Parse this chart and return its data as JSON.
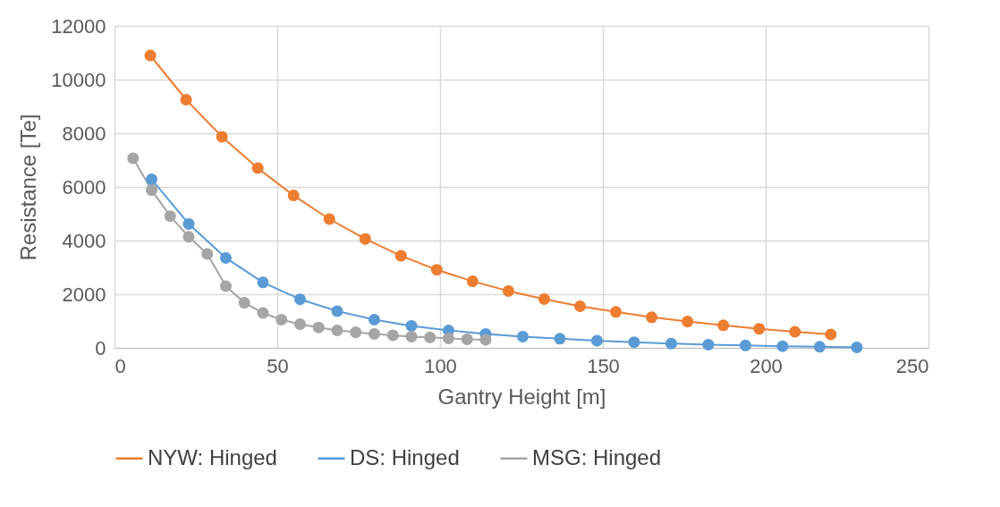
{
  "chart_data": {
    "type": "line",
    "xlabel": "Gantry Height [m]",
    "ylabel": "Resistance [Te]",
    "xlim": [
      0,
      250
    ],
    "xticks": [
      0,
      50,
      100,
      150,
      200,
      250
    ],
    "ylim": [
      0,
      12000
    ],
    "yticks": [
      0,
      2000,
      4000,
      6000,
      8000,
      10000,
      12000
    ],
    "grid": true,
    "legend": "bottom",
    "marker": "circle",
    "line_style": "solid",
    "series": [
      {
        "name": "NYW: Hinged",
        "color": "#ed7d31",
        "x": [
          11,
          22,
          33,
          44,
          55,
          66,
          77,
          88,
          99,
          110,
          121,
          132,
          143,
          154,
          165,
          176,
          187,
          198,
          209,
          220
        ],
        "values": [
          10900,
          9250,
          7870,
          6700,
          5680,
          4800,
          4060,
          3430,
          2910,
          2480,
          2120,
          1820,
          1550,
          1340,
          1140,
          980,
          840,
          710,
          600,
          500
        ]
      },
      {
        "name": "DS: Hinged",
        "color": "#5b9bd5",
        "x": [
          11.4,
          22.8,
          34.2,
          45.6,
          57,
          68.4,
          79.8,
          91.2,
          102.6,
          114,
          125.4,
          136.8,
          148.2,
          159.6,
          171,
          182.4,
          193.8,
          205.2,
          216.6,
          228
        ],
        "values": [
          6280,
          4620,
          3350,
          2440,
          1810,
          1370,
          1050,
          820,
          650,
          520,
          420,
          340,
          270,
          210,
          160,
          120,
          90,
          60,
          40,
          20
        ]
      },
      {
        "name": "MSG: Hinged",
        "color": "#a5a5a5",
        "x": [
          5.7,
          11.4,
          17.1,
          22.8,
          28.5,
          34.2,
          39.9,
          45.6,
          51.3,
          57,
          62.7,
          68.4,
          74.1,
          79.8,
          85.5,
          91.2,
          96.9,
          102.6,
          108.3,
          114
        ],
        "values": [
          7070,
          5880,
          4910,
          4140,
          3500,
          2300,
          1680,
          1300,
          1050,
          880,
          760,
          650,
          580,
          520,
          470,
          420,
          390,
          350,
          320,
          300
        ]
      }
    ]
  }
}
